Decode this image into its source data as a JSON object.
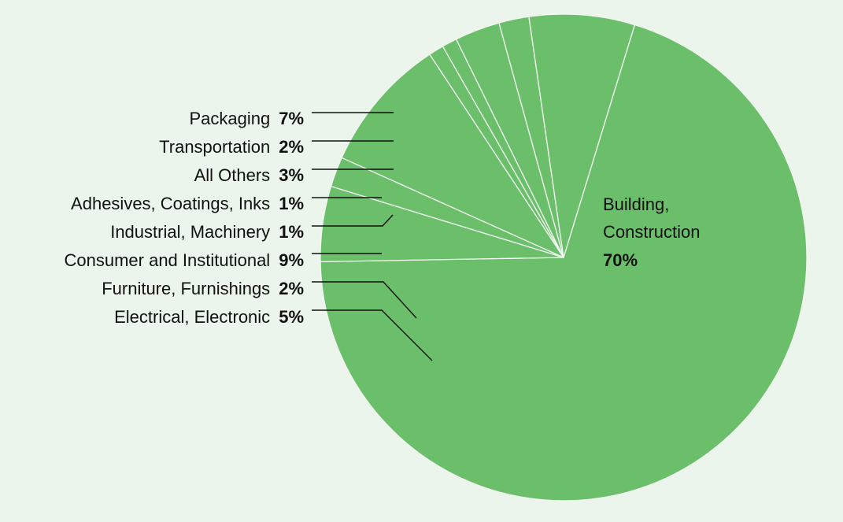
{
  "chart_data": {
    "type": "pie",
    "colors": {
      "background": "#ebf5ec",
      "slice": "#6bbf6b",
      "slice_border": "#f2f8f1",
      "text": "#111111",
      "leader": "#111111"
    },
    "slices": [
      {
        "label": "Building, Construction",
        "value": 70,
        "value_label": "70%"
      },
      {
        "label": "Electrical, Electronic",
        "value": 5,
        "value_label": "5%"
      },
      {
        "label": "Furniture, Furnishings",
        "value": 2,
        "value_label": "2%"
      },
      {
        "label": "Consumer and Institutional",
        "value": 9,
        "value_label": "9%"
      },
      {
        "label": "Industrial, Machinery",
        "value": 1,
        "value_label": "1%"
      },
      {
        "label": "Adhesives, Coatings, Inks",
        "value": 1,
        "value_label": "1%"
      },
      {
        "label": "All Others",
        "value": 3,
        "value_label": "3%"
      },
      {
        "label": "Transportation",
        "value": 2,
        "value_label": "2%"
      },
      {
        "label": "Packaging",
        "value": 7,
        "value_label": "7%"
      }
    ],
    "inside_label": {
      "lines": [
        "Building,",
        "Construction"
      ],
      "value": "70%"
    }
  }
}
